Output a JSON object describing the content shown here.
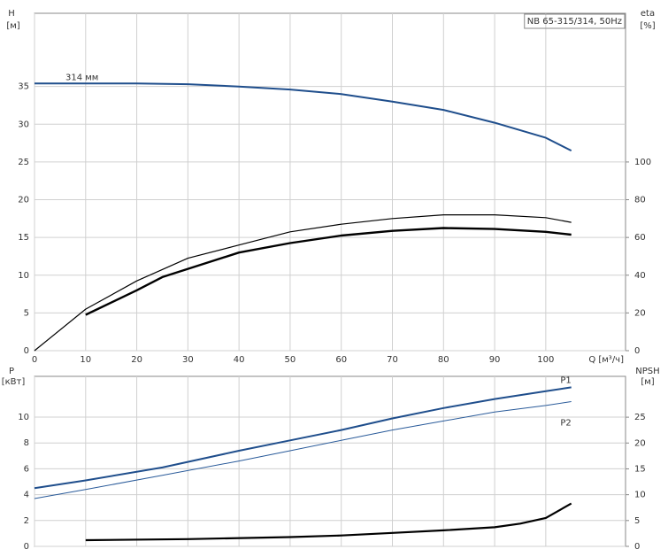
{
  "chart_data": [
    {
      "type": "line",
      "title": "NB 65-315/314, 50Hz",
      "ylabel": "H",
      "yunit": "[м]",
      "y2label": "eta",
      "y2unit": "[%]",
      "xlabel": "Q [м³/ч]",
      "xlim": [
        0,
        115.6
      ],
      "xticks": [
        0,
        10,
        20,
        30,
        40,
        50,
        60,
        70,
        80,
        90,
        100
      ],
      "show_xtick_labels": true,
      "ylim": [
        0,
        44.7
      ],
      "yticks": [
        0,
        5,
        10,
        15,
        20,
        25,
        30,
        35
      ],
      "y2lim": [
        0,
        178.8
      ],
      "y2ticks": [
        0,
        20,
        40,
        60,
        80,
        100
      ],
      "grid": true,
      "series": [
        {
          "name": "314 мм",
          "name_position": "start",
          "color": "#1f4e8c",
          "width": 2,
          "x": [
            0,
            10,
            20,
            30,
            40,
            50,
            60,
            70,
            80,
            90,
            100,
            105
          ],
          "values": [
            35.4,
            35.4,
            35.4,
            35.3,
            35.0,
            34.6,
            34.0,
            33.0,
            31.9,
            30.2,
            28.2,
            26.5
          ]
        },
        {
          "axis": "y2",
          "color": "#000000",
          "width": 1.2,
          "x": [
            0,
            10,
            20,
            30,
            40,
            50,
            60,
            70,
            80,
            90,
            100,
            105
          ],
          "values": [
            0,
            22,
            37,
            49,
            56,
            63,
            67,
            70,
            72,
            72,
            70.5,
            68
          ]
        },
        {
          "axis": "y2",
          "color": "#000000",
          "width": 2.4,
          "x": [
            10,
            20,
            25,
            40,
            50,
            60,
            70,
            80,
            90,
            100,
            105
          ],
          "values": [
            19,
            32,
            39,
            52,
            57,
            61,
            63.5,
            65,
            64.5,
            63,
            61.5
          ]
        }
      ]
    },
    {
      "type": "line",
      "ylabel": "P",
      "yunit": "[кВт]",
      "y2label": "NPSH",
      "y2unit": "[м]",
      "xlim": [
        0,
        115.6
      ],
      "xticks": [
        0,
        10,
        20,
        30,
        40,
        50,
        60,
        70,
        80,
        90,
        100
      ],
      "show_xtick_labels": false,
      "ylim": [
        0,
        13.15
      ],
      "yticks": [
        0,
        2,
        4,
        6,
        8,
        10
      ],
      "y2lim": [
        0,
        32.9
      ],
      "y2ticks": [
        0,
        5,
        10,
        15,
        20,
        25
      ],
      "grid": true,
      "series": [
        {
          "name": "P1",
          "name_position": "end",
          "color": "#1f4e8c",
          "width": 2,
          "x": [
            0,
            10,
            25,
            40,
            50,
            60,
            70,
            80,
            90,
            100,
            105
          ],
          "values": [
            4.5,
            5.1,
            6.1,
            7.4,
            8.2,
            9.0,
            9.9,
            10.7,
            11.4,
            12.0,
            12.3
          ]
        },
        {
          "name": "P2",
          "name_position": "end",
          "color": "#2a5b9a",
          "width": 1,
          "x": [
            0,
            10,
            25,
            40,
            50,
            60,
            70,
            80,
            90,
            100,
            105
          ],
          "values": [
            3.7,
            4.4,
            5.5,
            6.6,
            7.4,
            8.2,
            9.0,
            9.7,
            10.4,
            10.9,
            11.2
          ]
        },
        {
          "axis": "y2",
          "color": "#000000",
          "width": 2.2,
          "x": [
            10,
            30,
            50,
            60,
            70,
            80,
            90,
            95,
            100,
            105
          ],
          "values": [
            1.2,
            1.4,
            1.8,
            2.1,
            2.6,
            3.1,
            3.7,
            4.4,
            5.5,
            8.3
          ]
        }
      ]
    }
  ]
}
